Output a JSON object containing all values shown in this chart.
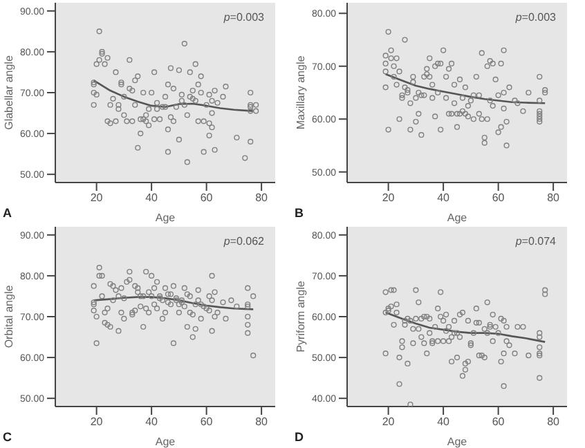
{
  "chart_data": [
    {
      "type": "scatter",
      "xlabel": "Age",
      "ylabel": "Glabellar angle",
      "annotations": [
        "p=0.003",
        "A"
      ],
      "xlim": [
        5,
        85
      ],
      "xticks": [
        20,
        40,
        60,
        80
      ],
      "ylim": [
        48,
        92
      ],
      "yticks": [
        {
          "value": 50,
          "label": "50.00"
        },
        {
          "value": 60,
          "label": "60.00"
        },
        {
          "value": 70,
          "label": "70.00"
        },
        {
          "value": 80,
          "label": "80.00"
        },
        {
          "value": 90,
          "label": "90.00"
        }
      ],
      "marker": "circle",
      "series": [
        {
          "type": "scatter",
          "color": "#7f7f7f",
          "x": [
            19,
            19,
            19,
            19,
            20,
            20,
            21,
            21,
            22,
            22,
            23,
            24,
            24,
            25,
            25,
            26,
            27,
            27,
            28,
            28,
            29,
            29,
            30,
            30,
            31,
            32,
            32,
            33,
            33,
            34,
            34,
            35,
            35,
            36,
            36,
            37,
            37,
            38,
            38,
            39,
            39,
            40,
            41,
            41,
            42,
            42,
            43,
            44,
            45,
            45,
            46,
            46,
            46,
            47,
            47,
            48,
            48,
            49,
            50,
            50,
            51,
            51,
            52,
            52,
            53,
            53,
            54,
            54,
            55,
            55,
            56,
            56,
            57,
            57,
            58,
            58,
            59,
            59,
            60,
            61,
            61,
            61,
            62,
            62,
            62,
            63,
            63,
            64,
            66,
            67,
            71,
            74,
            76,
            76,
            76,
            76,
            76,
            78,
            78
          ],
          "values": [
            72.5,
            72,
            70,
            67,
            69.5,
            77,
            78,
            85,
            80,
            79.5,
            77,
            78.5,
            63,
            62.5,
            67,
            68.5,
            75,
            63,
            66,
            67,
            72.5,
            72,
            69,
            64.5,
            63,
            71,
            78,
            70.5,
            63,
            73,
            67,
            74,
            56.5,
            60,
            63.5,
            63.5,
            70,
            63,
            64.5,
            66,
            62,
            70,
            75,
            63.5,
            66,
            67.5,
            63.5,
            66.5,
            69,
            66.5,
            72,
            61,
            55.5,
            76,
            64,
            71,
            63,
            66.5,
            75.5,
            58.5,
            69.5,
            68,
            82,
            67,
            64.5,
            53,
            75,
            69,
            70.5,
            68.5,
            77,
            68,
            72,
            63,
            74,
            70,
            63,
            55.5,
            67,
            69.5,
            62.5,
            59.5,
            68,
            65,
            61.5,
            70.5,
            56,
            67.5,
            69,
            71.5,
            59,
            54,
            70,
            67,
            66.5,
            65.5,
            58,
            67,
            65.5
          ]
        },
        {
          "type": "line",
          "marker": "none",
          "color": "#555555",
          "x": [
            19,
            25,
            30,
            35,
            40,
            45,
            50,
            55,
            60,
            65,
            70,
            77
          ],
          "values": [
            73,
            70.5,
            69,
            67.8,
            66.8,
            66.5,
            67.2,
            67.3,
            66.8,
            66.2,
            65.8,
            65.5
          ]
        }
      ]
    },
    {
      "type": "scatter",
      "xlabel": "Age",
      "ylabel": "Maxillary angle",
      "annotations": [
        "p=0.003",
        "B"
      ],
      "xlim": [
        5,
        85
      ],
      "xticks": [
        20,
        40,
        60,
        80
      ],
      "ylim": [
        48,
        82
      ],
      "yticks": [
        {
          "value": 50,
          "label": "50.00"
        },
        {
          "value": 60,
          "label": "60.00"
        },
        {
          "value": 70,
          "label": "70.00"
        },
        {
          "value": 80,
          "label": "80.00"
        }
      ],
      "marker": "circle",
      "series": [
        {
          "type": "scatter",
          "color": "#7f7f7f",
          "x": [
            19,
            19,
            19,
            19,
            20,
            20,
            21,
            21,
            22,
            22,
            23,
            23,
            24,
            24,
            25,
            25,
            26,
            26,
            27,
            27,
            28,
            28,
            29,
            29,
            30,
            30,
            31,
            31,
            32,
            32,
            33,
            33,
            34,
            34,
            35,
            35,
            36,
            36,
            37,
            37,
            38,
            38,
            39,
            39,
            40,
            41,
            41,
            42,
            42,
            43,
            43,
            44,
            44,
            45,
            45,
            46,
            46,
            47,
            47,
            48,
            48,
            49,
            49,
            50,
            51,
            51,
            52,
            53,
            53,
            54,
            54,
            55,
            55,
            56,
            56,
            57,
            57,
            58,
            58,
            59,
            60,
            60,
            61,
            61,
            62,
            62,
            62,
            63,
            63,
            64,
            66,
            67,
            69,
            71,
            75,
            75,
            75,
            75,
            75,
            75,
            75,
            77,
            77
          ],
          "values": [
            72,
            70.5,
            69,
            66,
            76.5,
            58,
            73,
            71.5,
            70,
            68,
            71.5,
            66.5,
            69,
            60,
            64.5,
            64,
            75,
            66,
            65.5,
            65,
            63,
            58,
            68,
            67,
            64,
            59.5,
            65,
            61,
            64.5,
            57,
            64.5,
            68,
            69.5,
            68.5,
            71.5,
            68,
            66.5,
            64,
            70,
            60.5,
            70.5,
            65,
            70.5,
            58,
            73,
            68,
            64,
            69.5,
            61,
            70.5,
            61,
            66.5,
            63,
            61,
            58.5,
            67.5,
            61,
            64,
            61.5,
            66,
            61,
            62.5,
            60.5,
            63.5,
            64.5,
            60,
            68,
            61,
            64.5,
            72.5,
            60,
            56.5,
            55.5,
            70,
            60,
            71,
            63.5,
            70.5,
            62.5,
            67.5,
            64.5,
            57.5,
            70.5,
            58.5,
            73,
            65,
            62,
            55,
            59.5,
            66,
            63.5,
            63,
            61.5,
            65,
            68,
            63.5,
            61.5,
            61,
            60.5,
            60,
            59.5,
            65.5,
            65
          ]
        },
        {
          "type": "line",
          "marker": "none",
          "color": "#555555",
          "x": [
            19,
            25,
            30,
            35,
            40,
            45,
            50,
            55,
            60,
            65,
            70,
            77
          ],
          "values": [
            68.5,
            67.3,
            66.3,
            65.7,
            65.2,
            64.7,
            64.2,
            63.8,
            63.5,
            63.2,
            63.1,
            63
          ]
        }
      ]
    },
    {
      "type": "scatter",
      "xlabel": "Age",
      "ylabel": "Orbital angle",
      "annotations": [
        "p=0.062",
        "C"
      ],
      "xlim": [
        5,
        85
      ],
      "xticks": [
        20,
        40,
        60,
        80
      ],
      "ylim": [
        48,
        92
      ],
      "yticks": [
        {
          "value": 50,
          "label": "50.00"
        },
        {
          "value": 60,
          "label": "60.00"
        },
        {
          "value": 70,
          "label": "70.00"
        },
        {
          "value": 80,
          "label": "80.00"
        },
        {
          "value": 90,
          "label": "90.00"
        }
      ],
      "marker": "circle",
      "series": [
        {
          "type": "scatter",
          "color": "#7f7f7f",
          "x": [
            19,
            19,
            19,
            19,
            20,
            20,
            21,
            21,
            22,
            22,
            23,
            23,
            24,
            24,
            25,
            25,
            26,
            26,
            27,
            28,
            28,
            29,
            29,
            30,
            30,
            31,
            32,
            32,
            33,
            33,
            34,
            34,
            35,
            35,
            36,
            36,
            37,
            37,
            38,
            38,
            39,
            39,
            40,
            40,
            41,
            41,
            42,
            42,
            43,
            43,
            44,
            44,
            45,
            45,
            46,
            46,
            47,
            47,
            48,
            48,
            49,
            49,
            50,
            50,
            51,
            51,
            52,
            52,
            53,
            53,
            54,
            54,
            55,
            55,
            56,
            56,
            57,
            57,
            58,
            58,
            59,
            60,
            61,
            61,
            62,
            62,
            62,
            63,
            63,
            64,
            66,
            67,
            69,
            71,
            75,
            75,
            75,
            75,
            75,
            75,
            77,
            77
          ],
          "values": [
            77.5,
            73.5,
            73,
            71.5,
            70,
            63.5,
            82,
            80,
            80,
            75,
            71,
            68.5,
            72,
            68,
            67.5,
            78,
            77.5,
            74,
            76.5,
            75,
            66.5,
            77,
            71,
            69.5,
            74.5,
            78.5,
            81,
            79,
            71,
            70.5,
            71.5,
            77.5,
            77,
            76,
            75,
            72.5,
            67.5,
            75,
            81,
            72,
            71,
            76,
            80,
            75,
            77,
            73,
            78.5,
            72,
            74.5,
            75,
            74,
            69.5,
            71,
            77,
            75.5,
            73.5,
            73,
            75.5,
            77.5,
            63.5,
            74,
            74.5,
            73,
            71,
            74,
            73.5,
            77,
            72.5,
            75.5,
            67.5,
            75,
            71,
            70.5,
            65,
            73,
            67,
            76.5,
            74,
            69.5,
            73,
            72.5,
            72,
            75,
            71.5,
            80,
            74,
            66.5,
            76,
            70,
            71,
            73.5,
            69.5,
            74,
            72.5,
            77,
            73,
            72.5,
            70,
            68,
            66,
            75,
            60.5
          ]
        },
        {
          "type": "line",
          "marker": "none",
          "color": "#555555",
          "x": [
            19,
            25,
            30,
            35,
            40,
            45,
            50,
            55,
            60,
            65,
            70,
            77
          ],
          "values": [
            74,
            74.3,
            74.6,
            74.8,
            74.8,
            74.5,
            74,
            73.3,
            72.7,
            72.3,
            72,
            71.8
          ]
        }
      ]
    },
    {
      "type": "scatter",
      "xlabel": "Age",
      "ylabel": "Pyriform angle",
      "annotations": [
        "p=0.074",
        "D"
      ],
      "xlim": [
        5,
        85
      ],
      "xticks": [
        20,
        40,
        60,
        80
      ],
      "ylim": [
        38,
        82
      ],
      "yticks": [
        {
          "value": 40,
          "label": "40.00"
        },
        {
          "value": 50,
          "label": "50.00"
        },
        {
          "value": 60,
          "label": "60.00"
        },
        {
          "value": 70,
          "label": "70.00"
        },
        {
          "value": 80,
          "label": "80.00"
        }
      ],
      "marker": "circle",
      "series": [
        {
          "type": "scatter",
          "color": "#7f7f7f",
          "x": [
            19,
            19,
            19,
            20,
            20,
            21,
            21,
            22,
            22,
            23,
            23,
            24,
            24,
            25,
            25,
            26,
            26,
            27,
            27,
            28,
            28,
            29,
            29,
            30,
            30,
            31,
            31,
            32,
            32,
            33,
            33,
            34,
            34,
            35,
            35,
            36,
            36,
            37,
            38,
            38,
            39,
            39,
            40,
            40,
            41,
            41,
            42,
            42,
            43,
            43,
            44,
            44,
            45,
            45,
            46,
            46,
            47,
            47,
            48,
            48,
            49,
            49,
            50,
            50,
            51,
            52,
            52,
            53,
            53,
            54,
            55,
            55,
            56,
            56,
            57,
            57,
            58,
            58,
            59,
            60,
            61,
            61,
            62,
            62,
            62,
            63,
            63,
            64,
            66,
            67,
            69,
            71,
            75,
            75,
            75,
            75,
            75,
            75,
            77,
            77
          ],
          "values": [
            66,
            61,
            51,
            62,
            61.5,
            62.5,
            66.5,
            66.5,
            58,
            63,
            61,
            50,
            43.5,
            54,
            52.5,
            59,
            58,
            48.5,
            59.5,
            38.5,
            59,
            57,
            53.5,
            66.5,
            59.5,
            63.5,
            57,
            55,
            59.5,
            53.5,
            60,
            60,
            51,
            56,
            59.5,
            54,
            53.5,
            57.5,
            62,
            54,
            66,
            60,
            59,
            54,
            60.5,
            56.5,
            57.5,
            54,
            49,
            55,
            56,
            59,
            56,
            50,
            60.5,
            55,
            61,
            45.5,
            48.5,
            47,
            49,
            59,
            53.5,
            53,
            56,
            62,
            58.5,
            58.5,
            50.5,
            50.5,
            57,
            50,
            63.5,
            56,
            58,
            57.5,
            60.5,
            54,
            57.5,
            56,
            59.5,
            49,
            59,
            51,
            43,
            54,
            57.5,
            53,
            51,
            57.5,
            57.5,
            50.5,
            56,
            55,
            52.5,
            51,
            50.5,
            45,
            66.5,
            65.5
          ]
        },
        {
          "type": "line",
          "marker": "none",
          "color": "#555555",
          "x": [
            19,
            25,
            30,
            35,
            40,
            45,
            50,
            55,
            60,
            65,
            70,
            77
          ],
          "values": [
            61,
            59.5,
            58.3,
            57.3,
            56.8,
            56.3,
            56,
            56,
            55.8,
            55.2,
            54.7,
            53.8
          ]
        }
      ]
    }
  ]
}
